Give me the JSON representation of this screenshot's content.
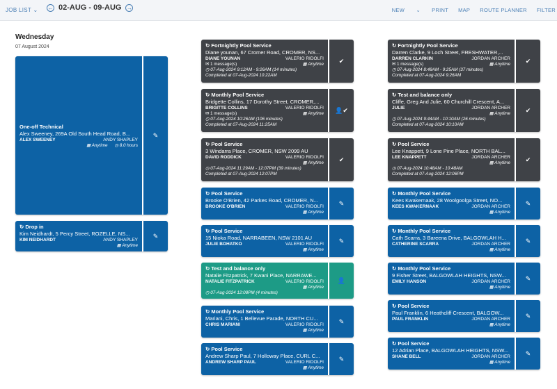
{
  "topbar": {
    "joblist": "JOB LIST",
    "prev": "←",
    "next": "→",
    "daterange": "02-AUG - 09-AUG",
    "actions": [
      "NEW",
      "PRINT",
      "MAP",
      "ROUTE PLANNER",
      "FILTER"
    ]
  },
  "day": {
    "name": "Wednesday",
    "date": "07 August 2024"
  },
  "col1": [
    {
      "theme": "blue",
      "title": "One-off Technical",
      "address": "Alex Sweeney, 269A Old South Head Road, B...",
      "customer": "ALEX SWEENEY",
      "tech": "ANDY SHAPLEY",
      "anytime": "Anytime",
      "duration": "8.0 hours",
      "action": "✎"
    },
    {
      "theme": "blue",
      "title": "Drop in",
      "address": "Kim Neidhardt, 5 Percy Street, ROZELLE, NS...",
      "customer": "KIM NEIDHARDT",
      "tech": "ANDY SHAPLEY",
      "anytime": "Anytime",
      "action": "✎"
    }
  ],
  "col2": [
    {
      "theme": "dark",
      "title": "Fortnightly Pool Service",
      "address": "Diane younan, 67 Cromer Road, CROMER, NS...",
      "customer": "DIANE YOUNAN",
      "tech": "VALERIO RIDOLFI",
      "messages": "1 message(s)",
      "anytime": "Anytime",
      "time": "07-Aug-2024 9:12AM - 9:26AM (14 minutes)",
      "completed": "Completed at 07-Aug-2024 10:22AM",
      "action": "✔"
    },
    {
      "theme": "dark",
      "title": "Monthly Pool Service",
      "address": "Bridgette Collins, 17 Dorothy Street, CROMER,...",
      "customer": "BRIGITTE COLLINS",
      "tech": "VALERIO RIDOLFI",
      "messages": "1 message(s)",
      "anytime": "Anytime",
      "time": "07-Aug-2024 10:26AM (106 minutes)",
      "completed": "Completed at 07-Aug-2024 11:25AM",
      "action": "👤✔"
    },
    {
      "theme": "dark",
      "title": "Pool Service",
      "address": "3 Windarra Place, CROMER, NSW 2099 AU",
      "customer": "DAVID RODDICK",
      "tech": "VALERIO RIDOLFI",
      "anytime": "Anytime",
      "time": "07-Aug-2024 11:29AM - 12:07PM (39 minutes)",
      "completed": "Completed at 07-Aug-2024 12:07PM",
      "action": "✔"
    },
    {
      "theme": "blue",
      "title": "Pool Service",
      "address": "Brooke O'Brien, 42 Parkes Road, CROMER, N...",
      "customer": "BROOKE O'BRIEN",
      "tech": "VALERIO RIDOLFI",
      "anytime": "Anytime",
      "action": "✎"
    },
    {
      "theme": "blue",
      "title": "Pool Service",
      "address": "15 Nioka Road, NARRABEEN, NSW 2101 AU",
      "customer": "JULIE BOHATKO",
      "tech": "VALERIO RIDOLFI",
      "anytime": "Anytime",
      "action": "✎"
    },
    {
      "theme": "green",
      "title": "Test and balance only",
      "address": "Natalie Fitzpatrick, 7 Kwani Place, NARRAWE...",
      "customer": "NATALIE FITZPATRICK",
      "tech": "VALERIO RIDOLFI",
      "anytime": "Anytime",
      "time": "07-Aug-2024 12:08PM (4 minutes)",
      "action": "👤"
    },
    {
      "theme": "blue",
      "title": "Monthly Pool Service",
      "address": "Mariani, Chris, 1 Bellevue Parade, NORTH CU...",
      "customer": "CHRIS MARIANI",
      "tech": "VALERIO RIDOLFI",
      "anytime": "Anytime",
      "action": "✎"
    },
    {
      "theme": "blue",
      "title": "Pool Service",
      "address": "Andrew Sharp Paul, 7 Holloway Place, CURL C...",
      "customer": "ANDREW SHARP PAUL",
      "tech": "VALERIO RIDOLFI",
      "anytime": "Anytime",
      "action": "✎"
    }
  ],
  "col3": [
    {
      "theme": "dark",
      "title": "Fortnightly Pool Service",
      "address": "Darren Clarke, 9 Loch Street, FRESHWATER,...",
      "customer": "DARREN CLARKIN",
      "tech": "JORDAN ARCHER",
      "messages": "1 message(s)",
      "anytime": "Anytime",
      "time": "07-Aug-2024 8:48AM - 9:25AM (37 minutes)",
      "completed": "Completed at 07-Aug-2024 9:26AM",
      "action": "✔"
    },
    {
      "theme": "dark",
      "title": "Test and balance only",
      "address": "Cliffe, Greg And Julie, 60 Churchill Crescent, A...",
      "customer": "JULIE",
      "tech": "JORDAN ARCHER",
      "anytime": "Anytime",
      "time": "07-Aug-2024 9:44AM - 10:10AM (26 minutes)",
      "completed": "Completed at 07-Aug-2024 10:10AM",
      "action": "✔"
    },
    {
      "theme": "dark",
      "title": "Pool Service",
      "address": "Lee Knappett, 9 Lone Pine Place, NORTH BAL...",
      "customer": "LEE KNAPPETT",
      "tech": "JORDAN ARCHER",
      "anytime": "Anytime",
      "time": "07-Aug-2024 10:48AM - 10:48AM",
      "completed": "Completed at 07-Aug-2024 12:06PM",
      "action": "✔"
    },
    {
      "theme": "blue",
      "title": "Monthly Pool Service",
      "address": "Kees Kwakernaak, 28 Woolgoolga Street, NO...",
      "customer": "KEES KWAKERNAAK",
      "tech": "JORDAN ARCHER",
      "anytime": "Anytime",
      "action": "✎"
    },
    {
      "theme": "blue",
      "title": "Monthly Pool Service",
      "address": "Cath Scarra, 3 Bareena Drive, BALGOWLAH H...",
      "customer": "CATHERINE SCARRA",
      "tech": "JORDAN ARCHER",
      "anytime": "Anytime",
      "action": "✎"
    },
    {
      "theme": "blue",
      "title": "Monthly Pool Service",
      "address": "9 Fisher Street, BALGOWLAH HEIGHTS, NSW...",
      "customer": "EMILY HANSON",
      "tech": "JORDAN ARCHER",
      "anytime": "Anytime",
      "action": "✎"
    },
    {
      "theme": "blue",
      "title": "Pool Service",
      "address": "Paul Franklin, 6 Heathcliff Crescent, BALGOW...",
      "customer": "PAUL FRANKLIN",
      "tech": "JORDAN ARCHER",
      "anytime": "Anytime",
      "action": "✎"
    },
    {
      "theme": "blue",
      "title": "Pool Service",
      "address": "12 Adrian Place, BALGOWLAH HEIGHTS, NSW...",
      "customer": "SHANE BELL",
      "tech": "JORDAN ARCHER",
      "anytime": "Anytime",
      "action": "✎"
    }
  ]
}
